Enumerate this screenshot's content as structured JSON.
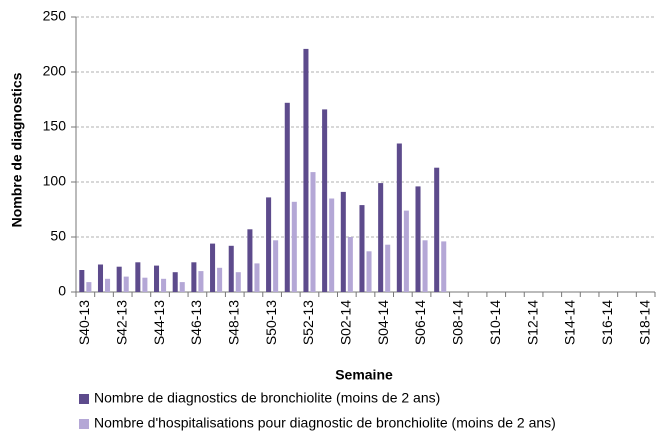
{
  "chart_data": {
    "type": "bar",
    "x_label": "Semaine",
    "y_label": "Nombre de diagnostics",
    "categories": [
      "S40-13",
      null,
      "S42-13",
      null,
      "S44-13",
      null,
      "S46-13",
      null,
      "S48-13",
      null,
      "S50-13",
      null,
      "S52-13",
      null,
      "S02-14",
      null,
      "S04-14",
      null,
      "S06-14",
      null,
      "S08-14",
      null,
      "S10-14",
      null,
      "S12-14",
      null,
      "S14-14",
      null,
      "S16-14",
      null,
      "S18-14"
    ],
    "series": [
      {
        "name": "Nombre de diagnostics de bronchiolite (moins de 2 ans)",
        "color": "#5d4b8c",
        "values": [
          20,
          25,
          23,
          27,
          24,
          18,
          27,
          44,
          42,
          57,
          86,
          172,
          221,
          166,
          91,
          79,
          99,
          135,
          96,
          113,
          null,
          null,
          null,
          null,
          null,
          null,
          null,
          null,
          null,
          null,
          null
        ]
      },
      {
        "name": "Nombre d'hospitalisations pour diagnostic de bronchiolite (moins de 2 ans)",
        "color": "#b4a7d6",
        "values": [
          9,
          12,
          14,
          13,
          12,
          9,
          19,
          22,
          18,
          26,
          47,
          82,
          109,
          85,
          50,
          37,
          43,
          74,
          47,
          46,
          null,
          null,
          null,
          null,
          null,
          null,
          null,
          null,
          null,
          null,
          null
        ]
      }
    ],
    "ylim": [
      0,
      250
    ],
    "yticks": [
      0,
      50,
      100,
      150,
      200,
      250
    ],
    "grid": true
  }
}
